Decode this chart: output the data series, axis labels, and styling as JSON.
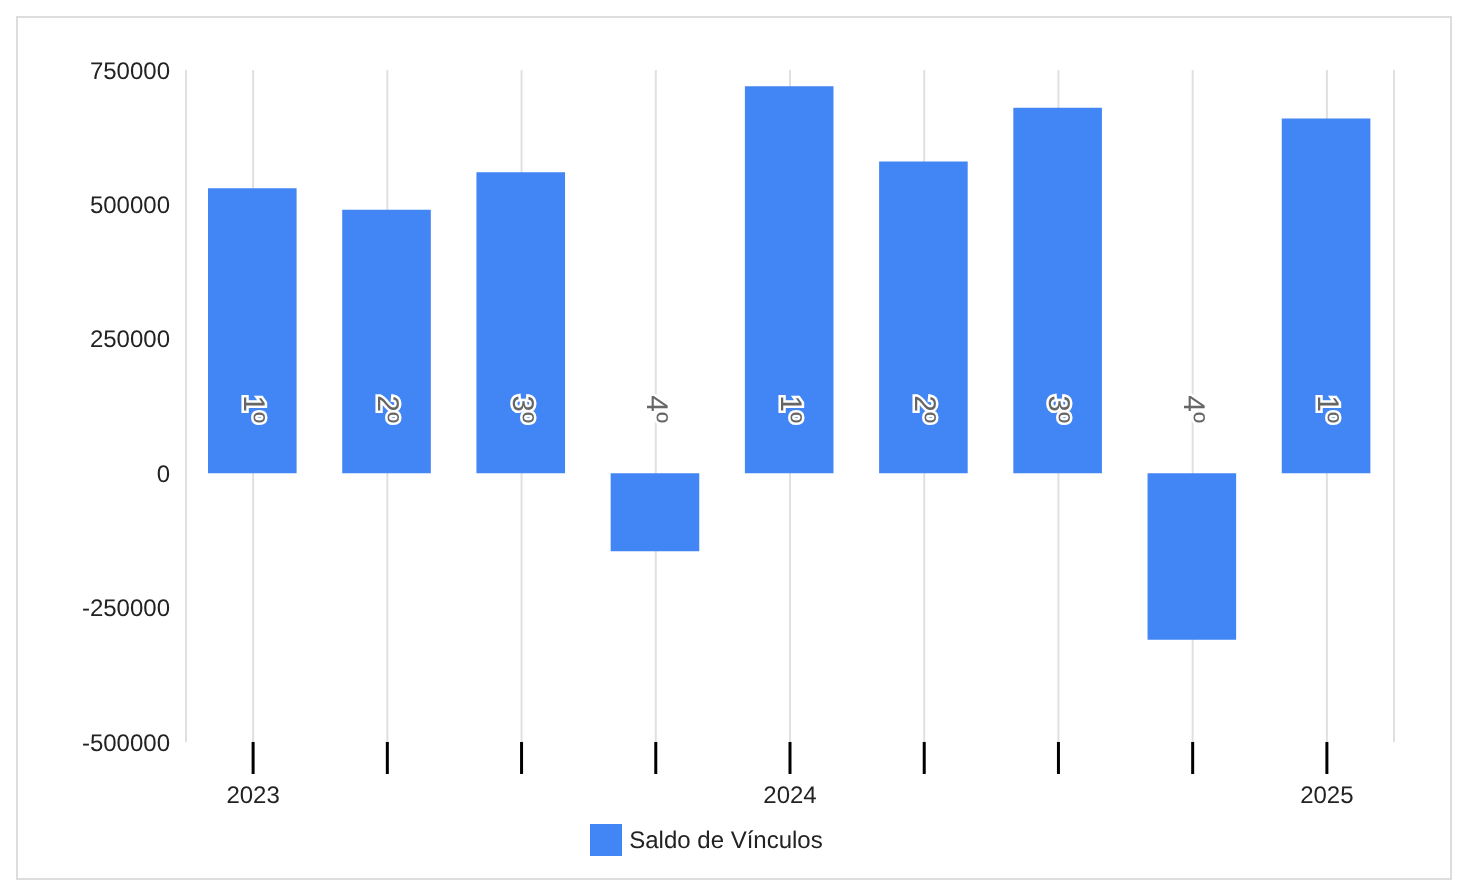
{
  "chart_data": {
    "type": "bar",
    "x": [
      2023,
      2023.25,
      2023.5,
      2023.75,
      2024,
      2024.25,
      2024.5,
      2024.75,
      2025
    ],
    "xlim": [
      2022.875,
      2025.125
    ],
    "xticks": [
      2023,
      {
        "value": 2023.25,
        "label": null
      },
      {
        "value": 2023.5,
        "label": null
      },
      {
        "value": 2023.75,
        "label": null
      },
      2024,
      {
        "value": 2024.25,
        "label": null
      },
      {
        "value": 2024.5,
        "label": null
      },
      {
        "value": 2024.75,
        "label": null
      },
      2025
    ],
    "series": [
      {
        "name": "Saldo de Vínculos",
        "color": "#4285f4",
        "values": [
          530000,
          490000,
          560000,
          -145000,
          720000,
          580000,
          680000,
          -310000,
          660000
        ]
      }
    ],
    "annotations": [
      "1º",
      "2º",
      "3º",
      "4º",
      "1º",
      "2º",
      "3º",
      "4º",
      "1º"
    ],
    "ylim": [
      -500000,
      750000
    ],
    "yticks": [
      -500000,
      -250000,
      0,
      250000,
      500000,
      750000
    ],
    "grid": "x",
    "legend": "bottom"
  }
}
